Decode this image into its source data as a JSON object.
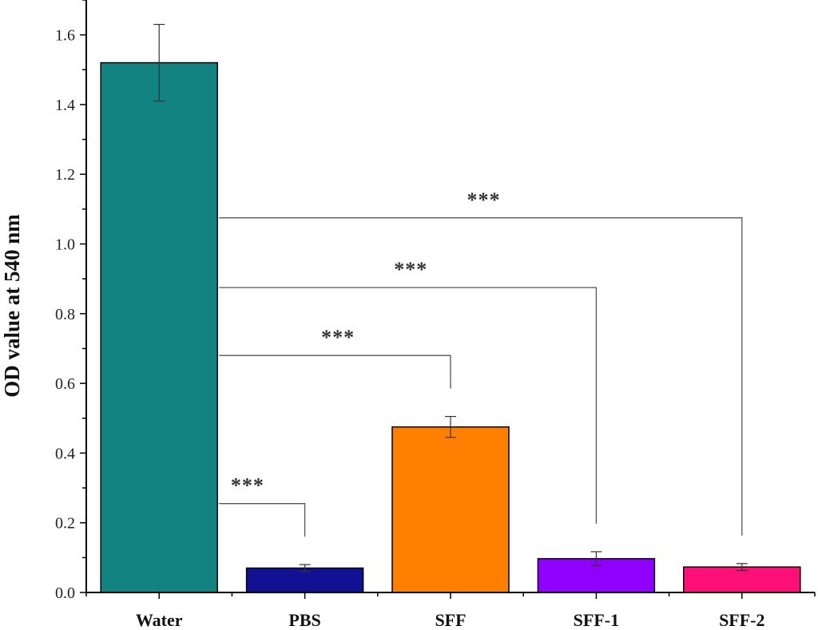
{
  "chart_data": {
    "type": "bar",
    "title": "",
    "xlabel": "",
    "ylabel": "OD value at 540 nm",
    "ylim": [
      0,
      1.7
    ],
    "yticks": [
      "0.0",
      "0.2",
      "0.4",
      "0.6",
      "0.8",
      "1.0",
      "1.2",
      "1.4",
      "1.6"
    ],
    "ytick_values": [
      0,
      0.2,
      0.4,
      0.6,
      0.8,
      1.0,
      1.2,
      1.4,
      1.6
    ],
    "categories": [
      "Water",
      "PBS",
      "SFF",
      "SFF-1",
      "SFF-2"
    ],
    "values": [
      1.52,
      0.07,
      0.475,
      0.097,
      0.073
    ],
    "errors": [
      0.11,
      0.01,
      0.03,
      0.02,
      0.01
    ],
    "colors": [
      "#138381",
      "#131193",
      "#ff8000",
      "#8f00ff",
      "#ff0f77"
    ],
    "grid": false,
    "significance": [
      {
        "from": "Water",
        "to": "PBS",
        "label": "***",
        "level": 0.255
      },
      {
        "from": "Water",
        "to": "SFF",
        "label": "***",
        "level": 0.68
      },
      {
        "from": "Water",
        "to": "SFF-1",
        "label": "***",
        "level": 0.875
      },
      {
        "from": "Water",
        "to": "SFF-2",
        "label": "***",
        "level": 1.075
      }
    ]
  }
}
